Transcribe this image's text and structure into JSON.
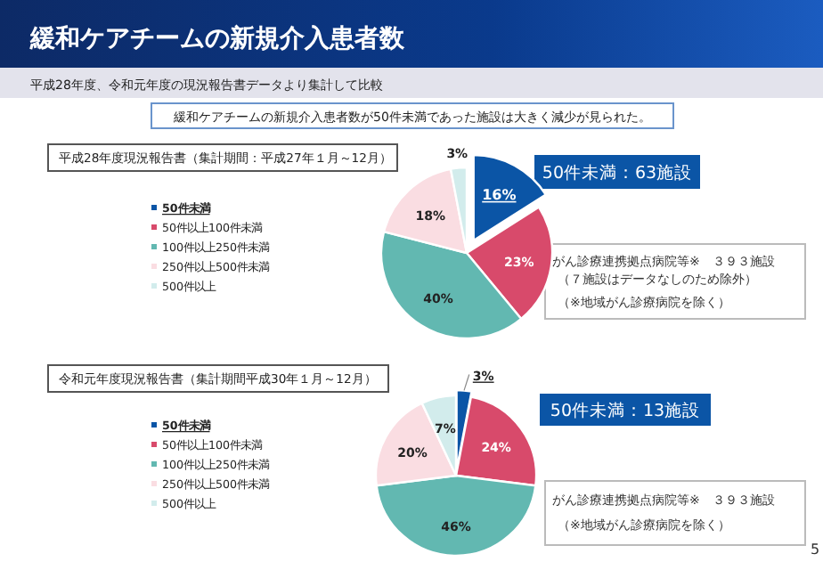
{
  "chart_data": [
    {
      "type": "pie",
      "title": "平成28年度現況報告書（集計期間：平成27年１月～12月）",
      "categories": [
        "50件未満",
        "50件以上100件未満",
        "100件以上250件未満",
        "250件以上500件未満",
        "500件以上"
      ],
      "values": [
        16,
        23,
        40,
        18,
        3
      ],
      "colors": [
        "#0b55a6",
        "#d84a6b",
        "#62b8b1",
        "#fadde2",
        "#d2ecec"
      ],
      "value_labels": [
        "16%",
        "23%",
        "40%",
        "18%",
        "3%"
      ],
      "legend": "left",
      "annotations": [
        "緩和ケアチームの新規介入患者数",
        "平成28年度、令和元年度の現況報告書データより集計して比較",
        "緩和ケアチームの新規介入患者数が50件未満であった施設は大きく減少が見られた。",
        "50件未満：63施設",
        "がん診療連携拠点病院等※　３９３施設",
        "（７施設はデータなしのため除外）",
        "（※地域がん診療病院を除く）"
      ]
    },
    {
      "type": "pie",
      "title": "令和元年度現況報告書（集計期間平成30年１月～12月）",
      "categories": [
        "50件未満",
        "50件以上100件未満",
        "100件以上250件未満",
        "250件以上500件未満",
        "500件以上"
      ],
      "values": [
        3,
        24,
        46,
        20,
        7
      ],
      "colors": [
        "#0b55a6",
        "#d84a6b",
        "#62b8b1",
        "#fadde2",
        "#d2ecec"
      ],
      "value_labels": [
        "3%",
        "24%",
        "46%",
        "20%",
        "7%"
      ],
      "legend": "left",
      "annotations": [
        "50件未満：13施設",
        "がん診療連携拠点病院等※　３９３施設",
        "（※地域がん診療病院を除く）",
        "5"
      ]
    }
  ]
}
